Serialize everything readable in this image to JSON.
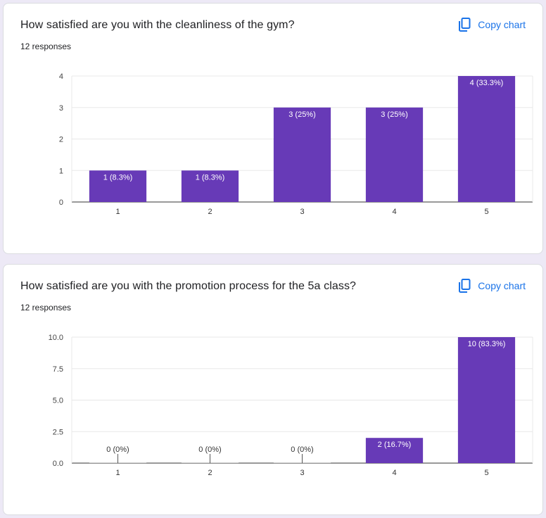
{
  "colors": {
    "bar": "#673ab7",
    "accent": "#1a73e8",
    "background": "#ede9f6"
  },
  "cards": [
    {
      "question": "How satisfied are you with the cleanliness of the gym?",
      "responses": "12 responses",
      "copy_label": "Copy chart",
      "copy_icon": "copy-icon"
    },
    {
      "question": "How satisfied are you with the promotion process for the 5a class?",
      "responses": "12 responses",
      "copy_label": "Copy chart",
      "copy_icon": "copy-icon"
    }
  ],
  "chart_data": [
    {
      "type": "bar",
      "categories": [
        "1",
        "2",
        "3",
        "4",
        "5"
      ],
      "values": [
        1,
        1,
        3,
        3,
        4
      ],
      "data_labels": [
        "1 (8.3%)",
        "1 (8.3%)",
        "3 (25%)",
        "3 (25%)",
        "4 (33.3%)"
      ],
      "yticks": [
        "0",
        "1",
        "2",
        "3",
        "4"
      ],
      "ylim": [
        0,
        4
      ],
      "grid": true
    },
    {
      "type": "bar",
      "categories": [
        "1",
        "2",
        "3",
        "4",
        "5"
      ],
      "values": [
        0,
        0,
        0,
        2,
        10
      ],
      "data_labels": [
        "0 (0%)",
        "0 (0%)",
        "0 (0%)",
        "2 (16.7%)",
        "10 (83.3%)"
      ],
      "yticks": [
        "0.0",
        "2.5",
        "5.0",
        "7.5",
        "10.0"
      ],
      "ylim": [
        0,
        10
      ],
      "grid": true
    }
  ]
}
